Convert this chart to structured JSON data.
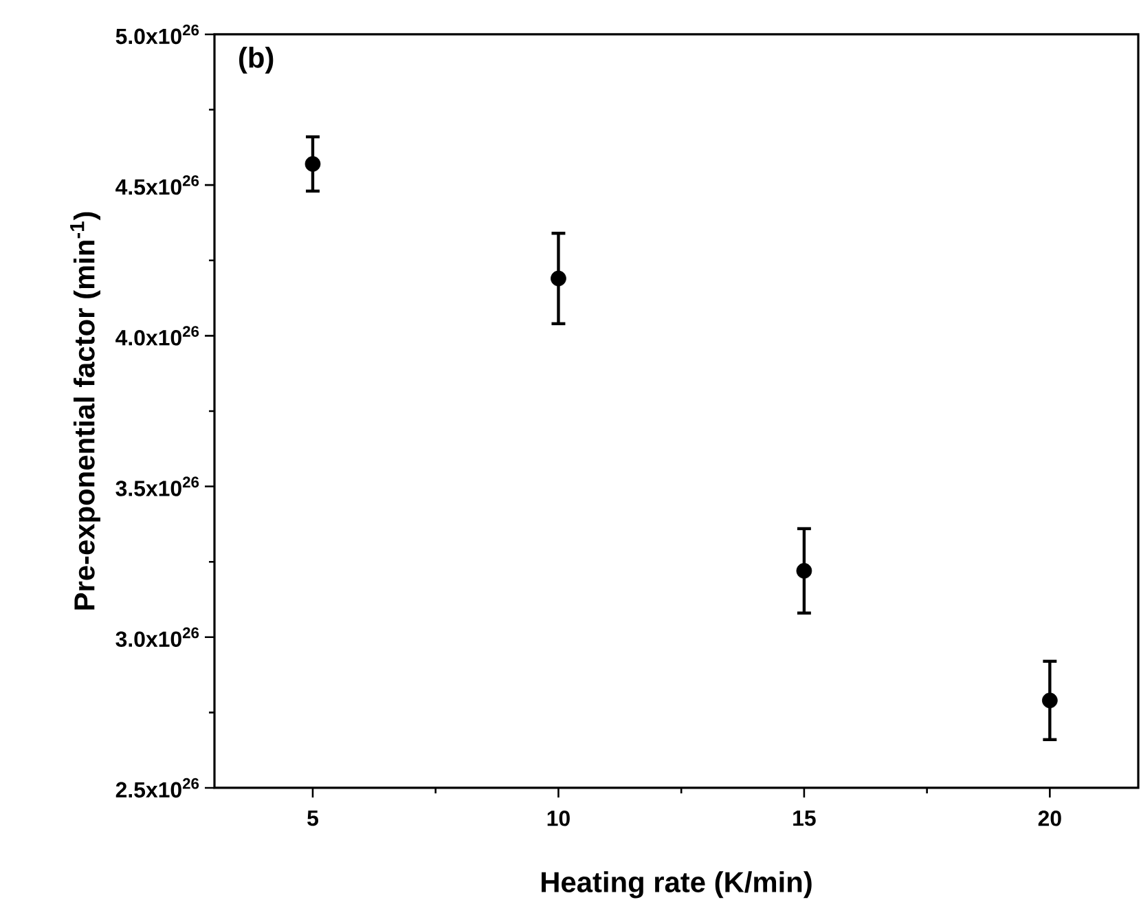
{
  "chart_data": {
    "type": "scatter",
    "xlabel": "Heating rate (K/min)",
    "ylabel": "Pre-exponential factor (min$^{-1}$)",
    "annotations": [
      "(b)"
    ],
    "x": [
      5,
      10,
      15,
      20
    ],
    "series": [
      {
        "color": "#000000",
        "values": [
          4.57e+26,
          4.19e+26,
          3.22e+26,
          2.79e+26
        ],
        "errors": [
          9e+24,
          1.5e+25,
          1.4e+25,
          1.3e+25
        ]
      }
    ],
    "xlim": [
      3,
      21.8
    ],
    "xticks": [
      5,
      10,
      15,
      20
    ],
    "ylim": [
      2.5e+26,
      5e+26
    ],
    "yticks": [
      {
        "value": 2.5e+26,
        "label": "2.5x10$^{26}$"
      },
      {
        "value": 3e+26,
        "label": "3.0x10$^{26}$"
      },
      {
        "value": 3.5e+26,
        "label": "3.5x10$^{26}$"
      },
      {
        "value": 4e+26,
        "label": "4.0x10$^{26}$"
      },
      {
        "value": 4.5e+26,
        "label": "4.5x10$^{26}$"
      },
      {
        "value": 5e+26,
        "label": "5.0x10$^{26}$"
      }
    ],
    "marker": "circle",
    "grid": false
  }
}
